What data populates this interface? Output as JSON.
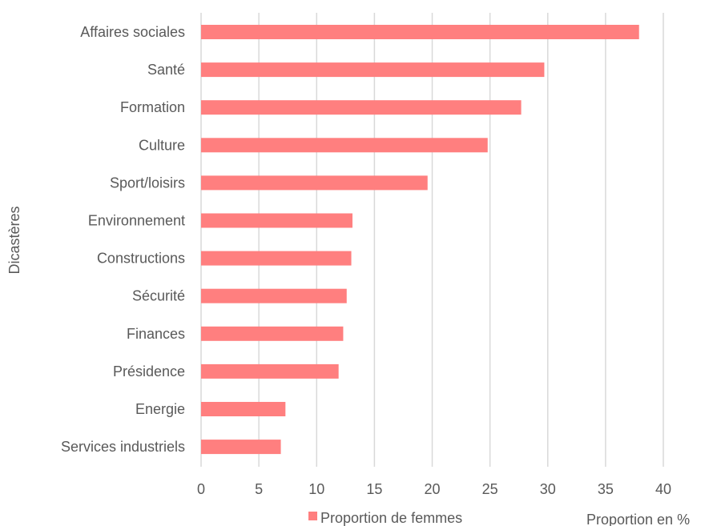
{
  "chart_data": {
    "type": "bar",
    "orientation": "horizontal",
    "categories": [
      "Affaires sociales",
      "Santé",
      "Formation",
      "Culture ",
      "Sport/loisirs",
      "Environnement",
      "Constructions",
      "Sécurité",
      "Finances",
      "Présidence",
      "Energie ",
      "Services industriels"
    ],
    "series": [
      {
        "name": "Proportion de femmes",
        "color": "#ff7f7f",
        "values": [
          37.9,
          29.7,
          27.7,
          24.8,
          19.6,
          13.1,
          13.0,
          12.6,
          12.3,
          11.9,
          7.3,
          6.9
        ]
      }
    ],
    "xlabel": "Proportion en %",
    "ylabel": "Dicastères",
    "xlim": [
      0,
      40
    ],
    "xticks": [
      "0",
      "5",
      "10",
      "15",
      "20",
      "25",
      "30",
      "35",
      "40"
    ],
    "grid": "vertical",
    "legend_position": "bottom"
  }
}
